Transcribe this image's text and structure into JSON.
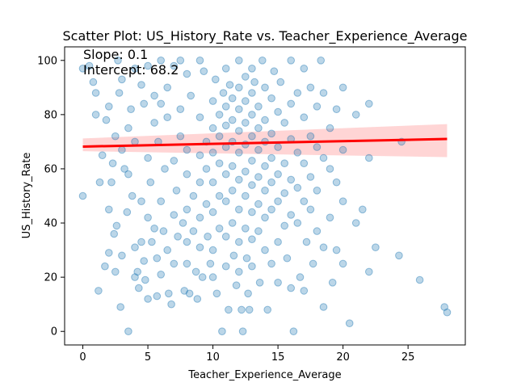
{
  "chart_data": {
    "type": "scatter",
    "title": "Scatter Plot: US_History_Rate vs. Teacher_Experience_Average",
    "xlabel": "Teacher_Experience_Average",
    "ylabel": "US_History_Rate",
    "xlim": [
      -1.4,
      29.4
    ],
    "ylim": [
      -5,
      105
    ],
    "xticks": [
      0,
      5,
      10,
      15,
      20,
      25
    ],
    "yticks": [
      0,
      20,
      40,
      60,
      80,
      100
    ],
    "grid": false,
    "annotations": {
      "slope": "Slope: 0.1",
      "intercept": "Intercept: 68.2"
    },
    "regression": {
      "slope": 0.1,
      "intercept": 68.2,
      "x_range": [
        0,
        28
      ],
      "band_lower": [
        66.5,
        64.3
      ],
      "band_upper": [
        71.2,
        76.5
      ],
      "line_color": "#ff0000",
      "band_color": "#ffb3b3"
    },
    "point_color": "#1f77b4",
    "points": [
      [
        0,
        97
      ],
      [
        0,
        50
      ],
      [
        0.5,
        98
      ],
      [
        0.8,
        92
      ],
      [
        1,
        88
      ],
      [
        1,
        80
      ],
      [
        1.2,
        15
      ],
      [
        1.3,
        55
      ],
      [
        1.5,
        65
      ],
      [
        1.7,
        24
      ],
      [
        1.8,
        78
      ],
      [
        2,
        83
      ],
      [
        2,
        45
      ],
      [
        2,
        29
      ],
      [
        2.2,
        55
      ],
      [
        2.3,
        62
      ],
      [
        2.4,
        36
      ],
      [
        2.5,
        72
      ],
      [
        2.5,
        22
      ],
      [
        2.6,
        39
      ],
      [
        2.7,
        100
      ],
      [
        2.8,
        88
      ],
      [
        2.9,
        9
      ],
      [
        3,
        93
      ],
      [
        3,
        67
      ],
      [
        3,
        28
      ],
      [
        3.2,
        60
      ],
      [
        3.4,
        44
      ],
      [
        3.5,
        75
      ],
      [
        3.5,
        58
      ],
      [
        3.5,
        0
      ],
      [
        3.7,
        82
      ],
      [
        3.8,
        50
      ],
      [
        4,
        97
      ],
      [
        4,
        70
      ],
      [
        4,
        31
      ],
      [
        4,
        20
      ],
      [
        4.2,
        22
      ],
      [
        4.3,
        16
      ],
      [
        4.5,
        91
      ],
      [
        4.5,
        48
      ],
      [
        4.5,
        33
      ],
      [
        4.7,
        84
      ],
      [
        4.7,
        26
      ],
      [
        4.8,
        19
      ],
      [
        5,
        98
      ],
      [
        5,
        42
      ],
      [
        5,
        64
      ],
      [
        5,
        12
      ],
      [
        5.2,
        55
      ],
      [
        5.3,
        33
      ],
      [
        5.5,
        87
      ],
      [
        5.5,
        77
      ],
      [
        5.5,
        38
      ],
      [
        5.7,
        27
      ],
      [
        5.7,
        13
      ],
      [
        5.8,
        70
      ],
      [
        6,
        100
      ],
      [
        6,
        84
      ],
      [
        6,
        48
      ],
      [
        6,
        21
      ],
      [
        6.2,
        37
      ],
      [
        6.3,
        60
      ],
      [
        6.5,
        90
      ],
      [
        6.5,
        79
      ],
      [
        6.5,
        30
      ],
      [
        6.6,
        14
      ],
      [
        6.8,
        10
      ],
      [
        7,
        98
      ],
      [
        7,
        63
      ],
      [
        7,
        43
      ],
      [
        7,
        25
      ],
      [
        7.2,
        52
      ],
      [
        7.3,
        35
      ],
      [
        7.5,
        100
      ],
      [
        7.5,
        82
      ],
      [
        7.5,
        72
      ],
      [
        7.7,
        40
      ],
      [
        7.8,
        15
      ],
      [
        8,
        95
      ],
      [
        8,
        67
      ],
      [
        8,
        58
      ],
      [
        8,
        45
      ],
      [
        8,
        33
      ],
      [
        8,
        25
      ],
      [
        8.2,
        14
      ],
      [
        8.3,
        87
      ],
      [
        8.5,
        50
      ],
      [
        8.5,
        37
      ],
      [
        8.7,
        22
      ],
      [
        8.8,
        12
      ],
      [
        9,
        100
      ],
      [
        9,
        79
      ],
      [
        9,
        65
      ],
      [
        9,
        55
      ],
      [
        9,
        42
      ],
      [
        9,
        31
      ],
      [
        9.2,
        20
      ],
      [
        9.3,
        96
      ],
      [
        9.5,
        70
      ],
      [
        9.5,
        60
      ],
      [
        9.5,
        47
      ],
      [
        9.6,
        35
      ],
      [
        9.8,
        25
      ],
      [
        10,
        85
      ],
      [
        10,
        75
      ],
      [
        10,
        66
      ],
      [
        10,
        55
      ],
      [
        10,
        44
      ],
      [
        10,
        30
      ],
      [
        10,
        20
      ],
      [
        10.2,
        93
      ],
      [
        10.3,
        14
      ],
      [
        10.5,
        80
      ],
      [
        10.5,
        72
      ],
      [
        10.5,
        62
      ],
      [
        10.5,
        50
      ],
      [
        10.5,
        38
      ],
      [
        10.7,
        0
      ],
      [
        10.8,
        88
      ],
      [
        11,
        97
      ],
      [
        11,
        83
      ],
      [
        11,
        76
      ],
      [
        11,
        68
      ],
      [
        11,
        58
      ],
      [
        11,
        48
      ],
      [
        11,
        35
      ],
      [
        11,
        24
      ],
      [
        11.2,
        8
      ],
      [
        11.3,
        91
      ],
      [
        11.5,
        86
      ],
      [
        11.5,
        78
      ],
      [
        11.5,
        70
      ],
      [
        11.5,
        61
      ],
      [
        11.5,
        52
      ],
      [
        11.5,
        40
      ],
      [
        11.6,
        28
      ],
      [
        11.8,
        17
      ],
      [
        12,
        100
      ],
      [
        12,
        90
      ],
      [
        12,
        82
      ],
      [
        12,
        74
      ],
      [
        12,
        66
      ],
      [
        12,
        56
      ],
      [
        12,
        45
      ],
      [
        12,
        33
      ],
      [
        12,
        22
      ],
      [
        12.2,
        8
      ],
      [
        12.3,
        0
      ],
      [
        12.5,
        94
      ],
      [
        12.5,
        85
      ],
      [
        12.5,
        77
      ],
      [
        12.5,
        69
      ],
      [
        12.5,
        59
      ],
      [
        12.5,
        50
      ],
      [
        12.5,
        38
      ],
      [
        12.6,
        27
      ],
      [
        12.7,
        14
      ],
      [
        12.8,
        8
      ],
      [
        13,
        97
      ],
      [
        13,
        88
      ],
      [
        13,
        80
      ],
      [
        13,
        72
      ],
      [
        13,
        63
      ],
      [
        13,
        54
      ],
      [
        13,
        44
      ],
      [
        13,
        34
      ],
      [
        13,
        24
      ],
      [
        13.2,
        92
      ],
      [
        13.5,
        83
      ],
      [
        13.5,
        75
      ],
      [
        13.5,
        67
      ],
      [
        13.5,
        57
      ],
      [
        13.5,
        47
      ],
      [
        13.5,
        37
      ],
      [
        13.6,
        18
      ],
      [
        13.8,
        100
      ],
      [
        14,
        90
      ],
      [
        14,
        78
      ],
      [
        14,
        70
      ],
      [
        14,
        61
      ],
      [
        14,
        52
      ],
      [
        14,
        42
      ],
      [
        14,
        30
      ],
      [
        14.2,
        8
      ],
      [
        14.5,
        86
      ],
      [
        14.5,
        73
      ],
      [
        14.5,
        64
      ],
      [
        14.5,
        55
      ],
      [
        14.5,
        45
      ],
      [
        14.5,
        25
      ],
      [
        14.7,
        96
      ],
      [
        15,
        81
      ],
      [
        15,
        68
      ],
      [
        15,
        58
      ],
      [
        15,
        48
      ],
      [
        15,
        33
      ],
      [
        15,
        18
      ],
      [
        15.2,
        92
      ],
      [
        15.5,
        77
      ],
      [
        15.5,
        62
      ],
      [
        15.5,
        51
      ],
      [
        15.5,
        39
      ],
      [
        15.7,
        27
      ],
      [
        16,
        100
      ],
      [
        16,
        84
      ],
      [
        16,
        71
      ],
      [
        16,
        56
      ],
      [
        16,
        43
      ],
      [
        16,
        16
      ],
      [
        16.2,
        0
      ],
      [
        16.5,
        88
      ],
      [
        16.5,
        66
      ],
      [
        16.5,
        53
      ],
      [
        16.5,
        40
      ],
      [
        16.7,
        20
      ],
      [
        17,
        97
      ],
      [
        17,
        79
      ],
      [
        17,
        62
      ],
      [
        17,
        48
      ],
      [
        17,
        15
      ],
      [
        17.2,
        33
      ],
      [
        17.5,
        90
      ],
      [
        17.5,
        72
      ],
      [
        17.5,
        57
      ],
      [
        17.5,
        45
      ],
      [
        17.7,
        25
      ],
      [
        18,
        83
      ],
      [
        18,
        68
      ],
      [
        18,
        52
      ],
      [
        18,
        37
      ],
      [
        18.3,
        100
      ],
      [
        18.5,
        88
      ],
      [
        18.5,
        64
      ],
      [
        18.5,
        31
      ],
      [
        18.5,
        9
      ],
      [
        19,
        75
      ],
      [
        19,
        60
      ],
      [
        19,
        42
      ],
      [
        19.2,
        18
      ],
      [
        19.5,
        82
      ],
      [
        19.5,
        55
      ],
      [
        19.5,
        30
      ],
      [
        20,
        90
      ],
      [
        20,
        67
      ],
      [
        20,
        48
      ],
      [
        20,
        25
      ],
      [
        20.5,
        3
      ],
      [
        21,
        80
      ],
      [
        21,
        40
      ],
      [
        21.5,
        45
      ],
      [
        22,
        84
      ],
      [
        22,
        64
      ],
      [
        22,
        22
      ],
      [
        22.5,
        31
      ],
      [
        24.3,
        28
      ],
      [
        24.5,
        70
      ],
      [
        25.9,
        19
      ],
      [
        27.8,
        9
      ],
      [
        28,
        7
      ]
    ]
  }
}
